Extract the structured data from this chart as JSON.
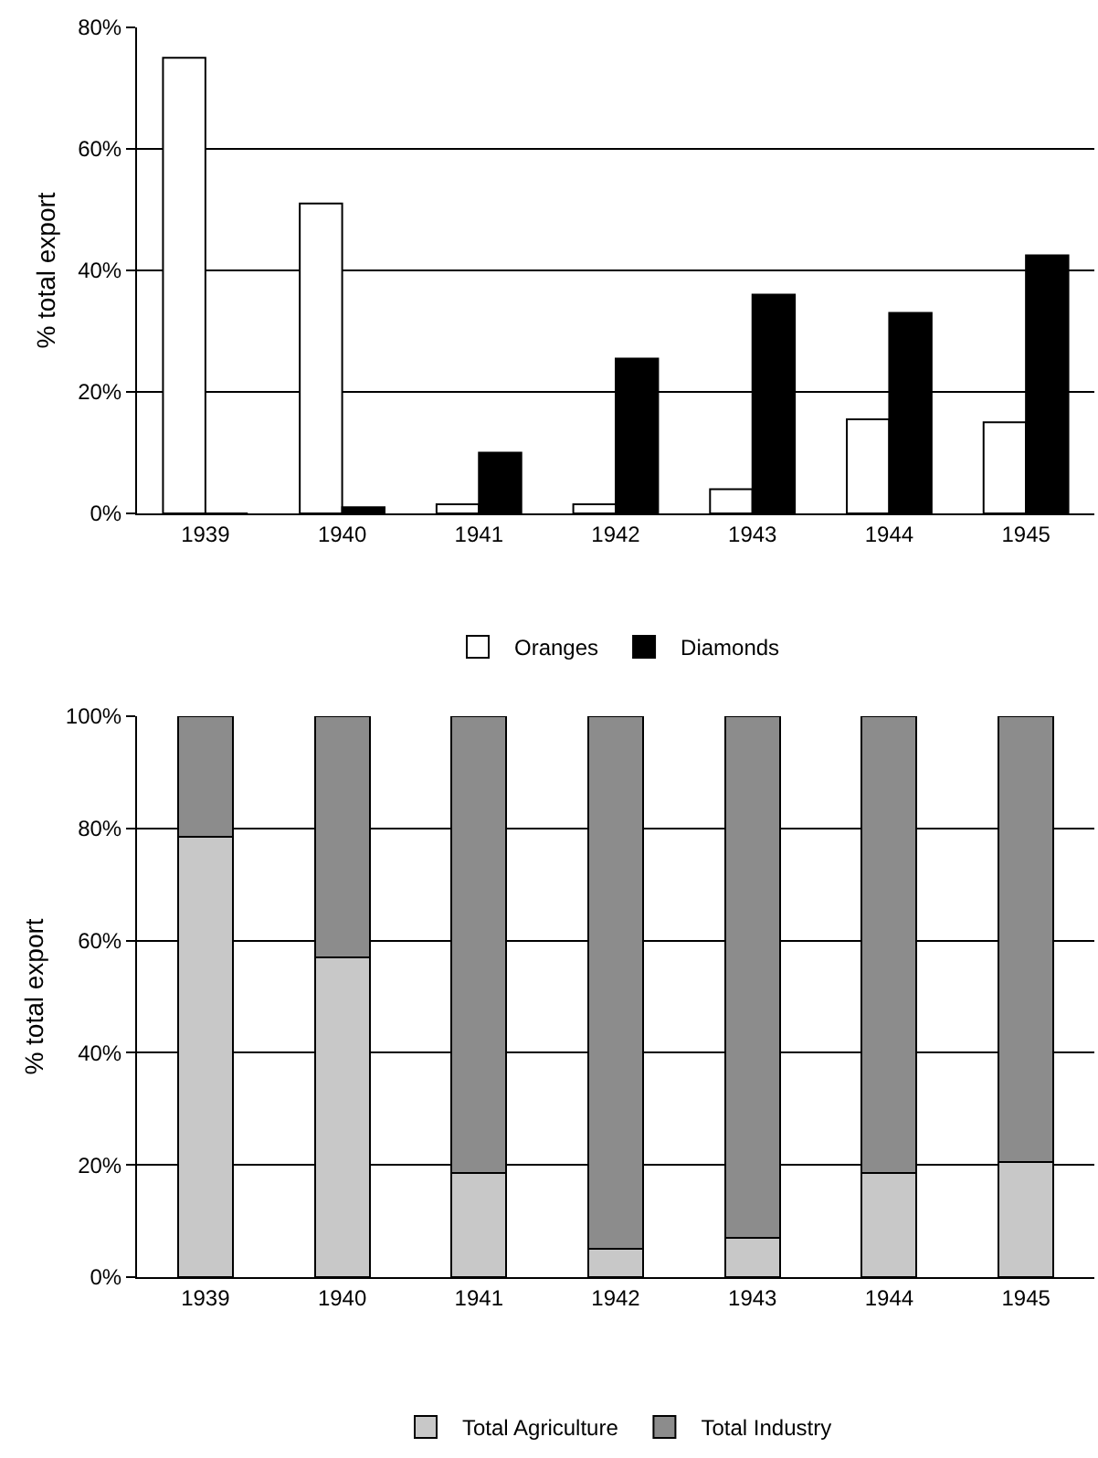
{
  "chart_data": [
    {
      "type": "bar",
      "ylabel": "% total export",
      "categories": [
        "1939",
        "1940",
        "1941",
        "1942",
        "1943",
        "1944",
        "1945"
      ],
      "series": [
        {
          "name": "Oranges",
          "color": "#ffffff",
          "values": [
            75,
            51,
            1.5,
            1.5,
            4,
            15.5,
            15
          ]
        },
        {
          "name": "Diamonds",
          "color": "#000000",
          "values": [
            0,
            1,
            10,
            25.5,
            36,
            33,
            42.5
          ]
        }
      ],
      "ylim": [
        0,
        80
      ],
      "yticks": [
        {
          "value": 0,
          "label": "0%"
        },
        {
          "value": 20,
          "label": "20%"
        },
        {
          "value": 40,
          "label": "40%"
        },
        {
          "value": 60,
          "label": "60%"
        },
        {
          "value": 80,
          "label": "80%"
        }
      ],
      "grid": "y",
      "legend": "bottom"
    },
    {
      "type": "bar",
      "stacked": true,
      "ylabel": "% total export",
      "categories": [
        "1939",
        "1940",
        "1941",
        "1942",
        "1943",
        "1944",
        "1945"
      ],
      "series": [
        {
          "name": "Total Agriculture",
          "color": "#c8c8c8",
          "values": [
            78.5,
            57,
            18.5,
            5,
            7,
            18.5,
            20.5
          ]
        },
        {
          "name": "Total Industry",
          "color": "#8c8c8c",
          "values": [
            21.5,
            43,
            81.5,
            95,
            93,
            81.5,
            79.5
          ]
        }
      ],
      "ylim": [
        0,
        100
      ],
      "yticks": [
        {
          "value": 0,
          "label": "0%"
        },
        {
          "value": 20,
          "label": "20%"
        },
        {
          "value": 40,
          "label": "40%"
        },
        {
          "value": 60,
          "label": "60%"
        },
        {
          "value": 80,
          "label": "80%"
        },
        {
          "value": 100,
          "label": "100%"
        }
      ],
      "grid": "y",
      "legend": "bottom"
    }
  ]
}
